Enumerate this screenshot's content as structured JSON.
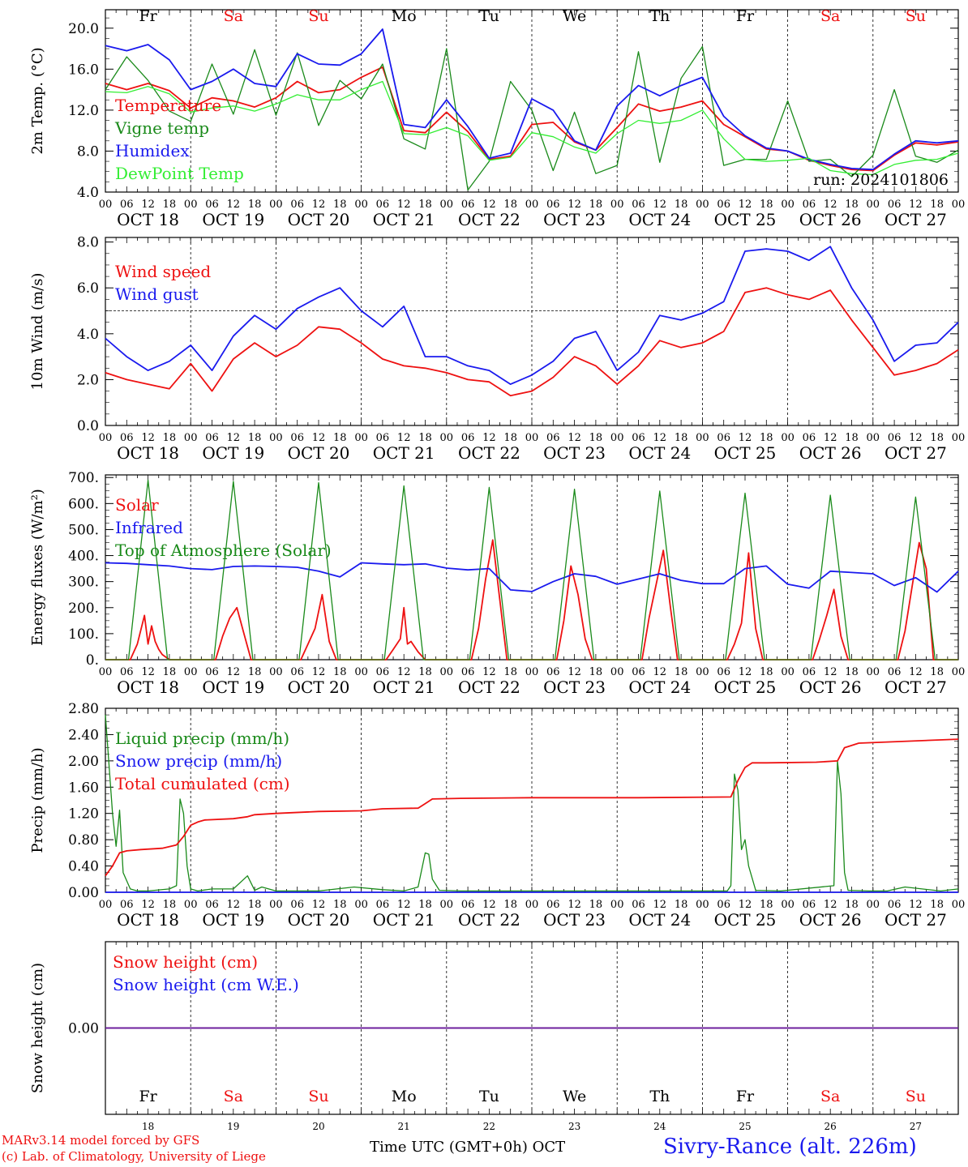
{
  "days": [
    {
      "abbr": "Fr",
      "date": "18",
      "weekend": false
    },
    {
      "abbr": "Sa",
      "date": "19",
      "weekend": true
    },
    {
      "abbr": "Su",
      "date": "20",
      "weekend": true
    },
    {
      "abbr": "Mo",
      "date": "21",
      "weekend": false
    },
    {
      "abbr": "Tu",
      "date": "22",
      "weekend": false
    },
    {
      "abbr": "We",
      "date": "23",
      "weekend": false
    },
    {
      "abbr": "Th",
      "date": "24",
      "weekend": false
    },
    {
      "abbr": "Fr",
      "date": "25",
      "weekend": false
    },
    {
      "abbr": "Sa",
      "date": "26",
      "weekend": true
    },
    {
      "abbr": "Su",
      "date": "27",
      "weekend": true
    }
  ],
  "date_labels": [
    "OCT 18",
    "OCT 19",
    "OCT 20",
    "OCT 21",
    "OCT 22",
    "OCT 23",
    "OCT 24",
    "OCT 25",
    "OCT 26",
    "OCT 27"
  ],
  "hour_ticks": [
    "00",
    "06",
    "12",
    "18"
  ],
  "colors": {
    "red": "#ee1111",
    "green": "#1a8a1a",
    "blue": "#1a1aee",
    "lightgreen": "#33ee33",
    "purple": "#6a1a9a",
    "axis": "#000000"
  },
  "footer": {
    "model": "MARv3.14 model forced by GFS",
    "lab": "(c) Lab. of Climatology, University of Liege",
    "xlabel": "Time UTC (GMT+0h) OCT",
    "site": "Sivry-Rance (alt. 226m)"
  },
  "chart_data": [
    {
      "type": "line",
      "title": "",
      "ylabel": "2m Temp. (°C)",
      "xlabel": "",
      "ylim": [
        4.0,
        21.8
      ],
      "yticks": [
        "4.0",
        "8.0",
        "12.0",
        "16.0",
        "20.0"
      ],
      "ytick_values": [
        4,
        8,
        12,
        16,
        20
      ],
      "run_label": "run: 2024101806",
      "show_days": true,
      "x_unit": "hours since OCT 18 00 UTC",
      "x": [
        0,
        6,
        12,
        18,
        24,
        30,
        36,
        42,
        48,
        54,
        60,
        66,
        72,
        78,
        84,
        90,
        96,
        102,
        108,
        114,
        120,
        126,
        132,
        138,
        144,
        150,
        156,
        162,
        168,
        174,
        180,
        186,
        192,
        198,
        204,
        210,
        216,
        222,
        228,
        234,
        240
      ],
      "series": [
        {
          "name": "Temperature",
          "color": "red",
          "values": [
            14.6,
            14.0,
            14.6,
            13.9,
            12.2,
            13.2,
            12.9,
            12.3,
            13.2,
            14.8,
            13.7,
            14.0,
            15.2,
            16.2,
            10.0,
            9.8,
            11.8,
            9.9,
            7.2,
            7.5,
            10.6,
            10.8,
            8.9,
            8.1,
            10.3,
            12.6,
            11.9,
            12.3,
            12.9,
            10.6,
            9.4,
            8.2,
            8.0,
            7.1,
            6.6,
            6.2,
            6.1,
            7.6,
            8.8,
            8.6,
            8.9
          ]
        },
        {
          "name": "Vigne temp",
          "color": "green",
          "values": [
            14.0,
            17.2,
            14.9,
            11.9,
            10.9,
            16.5,
            11.6,
            17.9,
            11.5,
            17.6,
            10.5,
            14.9,
            13.1,
            16.5,
            9.2,
            8.2,
            18.0,
            4.2,
            7.0,
            14.8,
            12.0,
            6.1,
            11.8,
            5.8,
            6.6,
            17.7,
            6.9,
            15.1,
            18.2,
            6.6,
            7.2,
            7.2,
            12.9,
            7.0,
            7.2,
            5.5,
            7.6,
            14.0,
            7.5,
            6.9,
            8.1
          ]
        },
        {
          "name": "Humidex",
          "color": "blue",
          "values": [
            18.3,
            17.8,
            18.4,
            16.9,
            14.0,
            14.8,
            16.0,
            14.6,
            14.3,
            17.5,
            16.5,
            16.4,
            17.5,
            19.9,
            10.6,
            10.3,
            13.0,
            10.4,
            7.3,
            7.8,
            13.1,
            12.0,
            9.0,
            8.1,
            12.4,
            14.4,
            13.4,
            14.4,
            15.2,
            11.4,
            9.5,
            8.3,
            8.0,
            7.2,
            6.7,
            6.3,
            6.2,
            7.7,
            9.0,
            8.8,
            9.0
          ]
        },
        {
          "name": "DewPoint Temp",
          "color": "lightgreen",
          "values": [
            13.8,
            13.7,
            14.3,
            13.6,
            11.8,
            12.2,
            12.4,
            11.9,
            12.6,
            13.5,
            13.0,
            13.0,
            14.0,
            14.8,
            9.7,
            9.6,
            10.3,
            9.5,
            7.1,
            7.4,
            9.8,
            9.4,
            8.4,
            7.8,
            9.7,
            11.0,
            10.7,
            11.0,
            12.0,
            9.2,
            7.2,
            7.0,
            7.1,
            7.3,
            6.1,
            5.8,
            5.7,
            6.7,
            7.1,
            7.2,
            7.8
          ]
        }
      ]
    },
    {
      "type": "line",
      "title": "",
      "ylabel": "10m Wind (m/s)",
      "xlabel": "",
      "ylim": [
        0.0,
        8.2
      ],
      "yticks": [
        "0.0",
        "2.0",
        "4.0",
        "6.0",
        "8.0"
      ],
      "ytick_values": [
        0,
        2,
        4,
        6,
        8
      ],
      "reference_line": 5.0,
      "show_days": false,
      "x_unit": "hours since OCT 18 00 UTC",
      "x": [
        0,
        6,
        12,
        18,
        24,
        30,
        36,
        42,
        48,
        54,
        60,
        66,
        72,
        78,
        84,
        90,
        96,
        102,
        108,
        114,
        120,
        126,
        132,
        138,
        144,
        150,
        156,
        162,
        168,
        174,
        180,
        186,
        192,
        198,
        204,
        210,
        216,
        222,
        228,
        234,
        240
      ],
      "series": [
        {
          "name": "Wind speed",
          "color": "red",
          "values": [
            2.3,
            2.0,
            1.8,
            1.6,
            2.7,
            1.5,
            2.9,
            3.6,
            3.0,
            3.5,
            4.3,
            4.2,
            3.6,
            2.9,
            2.6,
            2.5,
            2.3,
            2.0,
            1.9,
            1.3,
            1.5,
            2.1,
            3.0,
            2.6,
            1.8,
            2.6,
            3.7,
            3.4,
            3.6,
            4.1,
            5.8,
            6.0,
            5.7,
            5.5,
            5.9,
            4.6,
            3.4,
            2.2,
            2.4,
            2.7,
            3.3
          ]
        },
        {
          "name": "Wind gust",
          "color": "blue",
          "values": [
            3.8,
            3.0,
            2.4,
            2.8,
            3.5,
            2.4,
            3.9,
            4.8,
            4.2,
            5.1,
            5.6,
            6.0,
            5.0,
            4.3,
            5.2,
            3.0,
            3.0,
            2.6,
            2.4,
            1.8,
            2.2,
            2.8,
            3.8,
            4.1,
            2.4,
            3.2,
            4.8,
            4.6,
            4.9,
            5.4,
            7.6,
            7.7,
            7.6,
            7.2,
            7.8,
            6.0,
            4.6,
            2.8,
            3.5,
            3.6,
            4.5
          ]
        }
      ]
    },
    {
      "type": "line",
      "title": "",
      "ylabel": "Energy fluxes (W/m²)",
      "xlabel": "",
      "ylim": [
        0,
        710
      ],
      "yticks": [
        "0.",
        "100.",
        "200.",
        "300.",
        "400.",
        "500.",
        "600.",
        "700."
      ],
      "ytick_values": [
        0,
        100,
        200,
        300,
        400,
        500,
        600,
        700
      ],
      "show_days": false,
      "x_unit": "hours since OCT 18 00 UTC",
      "series": [
        {
          "name": "Solar",
          "color": "red",
          "x": [
            0,
            7,
            9,
            11,
            12,
            13,
            14,
            15,
            16,
            18,
            24,
            31,
            33,
            35,
            37,
            39,
            41,
            48,
            55,
            57,
            59,
            61,
            63,
            65,
            72,
            79,
            81,
            83,
            84,
            85,
            86,
            88,
            90,
            96,
            103,
            105,
            107,
            109,
            111,
            113,
            120,
            127,
            129,
            131,
            133,
            135,
            137,
            144,
            151,
            153,
            155,
            157,
            159,
            161,
            168,
            175,
            177,
            179,
            181,
            183,
            185,
            192,
            199,
            201,
            203,
            205,
            207,
            209,
            216,
            223,
            225,
            227,
            229,
            231,
            233,
            240
          ],
          "values": [
            0,
            0,
            60,
            170,
            60,
            130,
            70,
            40,
            20,
            0,
            0,
            0,
            90,
            160,
            200,
            100,
            0,
            0,
            0,
            60,
            120,
            250,
            70,
            0,
            0,
            0,
            40,
            80,
            200,
            60,
            70,
            30,
            0,
            0,
            0,
            120,
            310,
            460,
            230,
            0,
            0,
            0,
            150,
            360,
            250,
            80,
            0,
            0,
            0,
            160,
            290,
            420,
            200,
            0,
            0,
            0,
            60,
            140,
            410,
            120,
            0,
            0,
            0,
            80,
            170,
            270,
            90,
            0,
            0,
            0,
            110,
            280,
            450,
            350,
            0,
            0
          ]
        },
        {
          "name": "Infrared",
          "color": "blue",
          "x": [
            0,
            6,
            12,
            18,
            24,
            30,
            36,
            42,
            48,
            54,
            60,
            66,
            72,
            78,
            84,
            90,
            96,
            102,
            108,
            114,
            120,
            126,
            132,
            138,
            144,
            150,
            156,
            162,
            168,
            174,
            180,
            186,
            192,
            198,
            204,
            210,
            216,
            222,
            228,
            234,
            240
          ],
          "values": [
            372,
            370,
            365,
            360,
            350,
            346,
            358,
            360,
            358,
            355,
            340,
            318,
            372,
            368,
            365,
            368,
            352,
            345,
            350,
            268,
            262,
            300,
            330,
            320,
            290,
            310,
            330,
            305,
            292,
            292,
            350,
            360,
            290,
            275,
            340,
            335,
            330,
            285,
            315,
            260,
            340
          ]
        },
        {
          "name": "Top of Atmosphere (Solar)",
          "color": "green",
          "x": [
            0,
            6.5,
            12,
            17.5,
            24,
            30.5,
            36,
            41.5,
            48,
            54.5,
            60,
            65.5,
            72,
            78.5,
            84,
            89.5,
            96,
            102.5,
            108,
            113.5,
            120,
            126.5,
            132,
            137.5,
            144,
            150.5,
            156,
            161.5,
            168,
            174.5,
            180,
            185.5,
            192,
            198.5,
            204,
            209.5,
            216,
            222.5,
            228,
            233.5,
            240
          ],
          "values": [
            0,
            0,
            690,
            0,
            0,
            0,
            685,
            0,
            0,
            0,
            680,
            0,
            0,
            0,
            668,
            0,
            0,
            0,
            662,
            0,
            0,
            0,
            655,
            0,
            0,
            0,
            648,
            0,
            0,
            0,
            640,
            0,
            0,
            0,
            632,
            0,
            0,
            0,
            625,
            0,
            0
          ]
        }
      ]
    },
    {
      "type": "line",
      "title": "",
      "ylabel": "Precip (mm/h)",
      "xlabel": "",
      "ylim": [
        0.0,
        2.8
      ],
      "yticks": [
        "0.00",
        "0.40",
        "0.80",
        "1.20",
        "1.60",
        "2.00",
        "2.40",
        "2.80"
      ],
      "ytick_values": [
        0,
        0.4,
        0.8,
        1.2,
        1.6,
        2.0,
        2.4,
        2.8
      ],
      "show_days": false,
      "x_unit": "hours since OCT 18 00 UTC",
      "series": [
        {
          "name": "Liquid precip (mm/h)",
          "color": "green",
          "x": [
            0,
            2,
            3,
            4,
            5,
            7,
            9,
            12,
            18,
            20,
            21,
            22,
            23,
            24,
            26,
            30,
            36,
            40,
            42,
            44,
            48,
            60,
            70,
            78,
            84,
            88,
            90,
            91,
            92,
            94,
            100,
            120,
            150,
            162,
            175,
            176,
            177,
            178,
            179,
            180,
            181,
            183,
            190,
            205,
            206,
            207,
            208,
            209,
            215,
            220,
            225,
            235,
            240
          ],
          "values": [
            2.7,
            1.2,
            0.7,
            1.25,
            0.3,
            0.05,
            0.02,
            0.02,
            0.05,
            0.1,
            1.42,
            1.2,
            0.4,
            0.05,
            0.02,
            0.05,
            0.05,
            0.25,
            0.03,
            0.08,
            0.02,
            0.02,
            0.08,
            0.04,
            0.02,
            0.08,
            0.6,
            0.58,
            0.2,
            0.03,
            0.02,
            0.02,
            0.02,
            0.02,
            0.02,
            0.1,
            1.8,
            1.55,
            0.65,
            0.8,
            0.4,
            0.03,
            0.02,
            0.1,
            2.0,
            1.5,
            0.3,
            0.03,
            0.02,
            0.02,
            0.08,
            0.02,
            0.05
          ]
        },
        {
          "name": "Snow precip (mm/h)",
          "color": "blue",
          "x": [
            0,
            240
          ],
          "values": [
            0,
            0
          ]
        },
        {
          "name": "Total cumulated (cm)",
          "color": "red",
          "x": [
            0,
            2,
            4,
            6,
            10,
            16,
            20,
            22,
            24,
            26,
            28,
            36,
            40,
            42,
            48,
            60,
            72,
            78,
            88,
            90,
            92,
            100,
            120,
            150,
            176,
            178,
            180,
            182,
            186,
            200,
            206,
            208,
            212,
            240
          ],
          "values": [
            0.25,
            0.4,
            0.6,
            0.63,
            0.65,
            0.67,
            0.72,
            0.85,
            1.02,
            1.07,
            1.1,
            1.12,
            1.15,
            1.18,
            1.2,
            1.23,
            1.24,
            1.27,
            1.28,
            1.35,
            1.42,
            1.43,
            1.44,
            1.44,
            1.45,
            1.7,
            1.9,
            1.97,
            1.97,
            1.98,
            2.0,
            2.2,
            2.27,
            2.33
          ]
        }
      ]
    },
    {
      "type": "line",
      "title": "",
      "ylabel": "Snow height (cm)",
      "xlabel": "",
      "ylim": [
        -1,
        1
      ],
      "yticks": [
        "0.00"
      ],
      "ytick_values": [
        0
      ],
      "show_days": false,
      "x_unit": "hours since OCT 18 00 UTC",
      "series": [
        {
          "name": "Snow height (cm)",
          "color": "red",
          "x": [
            0,
            240
          ],
          "values": [
            0,
            0
          ]
        },
        {
          "name": "Snow height (cm W.E.)",
          "color": "blue",
          "x": [
            0,
            240
          ],
          "values": [
            0,
            0
          ]
        }
      ]
    }
  ]
}
